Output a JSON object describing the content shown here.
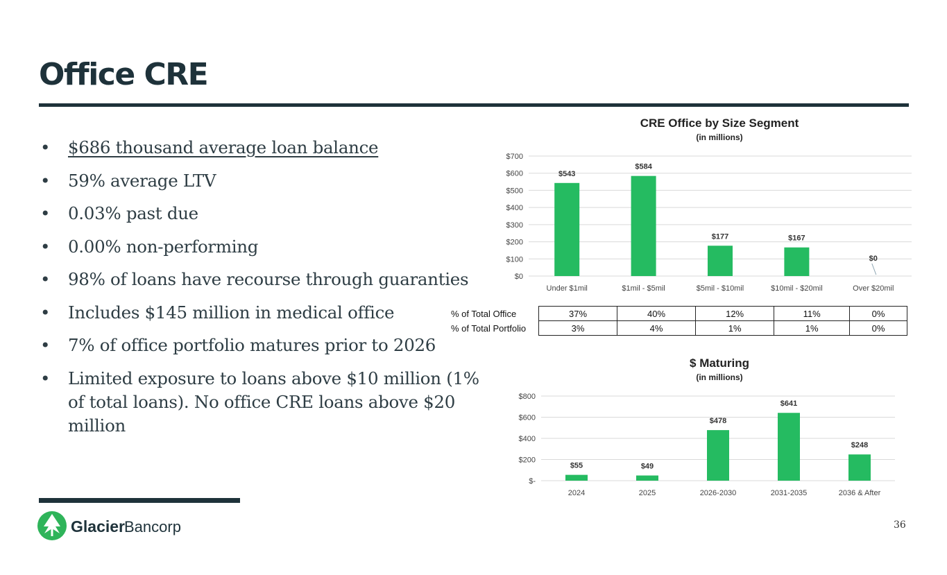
{
  "slide": {
    "title": "Office CRE",
    "page_number": "36",
    "bullets": [
      {
        "text": "$686 thousand average loan balance",
        "underline": true
      },
      {
        "text": "59% average LTV"
      },
      {
        "text": "0.03% past due"
      },
      {
        "text": "0.00% non-performing"
      },
      {
        "text": "98% of loans have recourse through guaranties"
      },
      {
        "text": "Includes $145 million in medical office"
      },
      {
        "text": "7% of office portfolio matures prior to 2026"
      },
      {
        "text": "Limited exposure to loans above $10 million (1% of total loans). No office CRE loans above $20 million"
      }
    ],
    "bullet_glyph": "•"
  },
  "logo": {
    "brand": "Glacier",
    "suffix": "Bancorp",
    "icon": "glacier-mountain-icon",
    "color": "#2fb45a"
  },
  "colors": {
    "bar": "#25bb61",
    "grid": "#d9d9d9",
    "dark": "#1e323a"
  },
  "pct_table": {
    "rows": [
      {
        "label": "% of Total Office",
        "values": [
          "37%",
          "40%",
          "12%",
          "11%",
          "0%"
        ]
      },
      {
        "label": "% of Total Portfolio",
        "values": [
          "3%",
          "4%",
          "1%",
          "1%",
          "0%"
        ]
      }
    ]
  },
  "chart_data": [
    {
      "type": "bar",
      "title": "CRE Office by Size Segment",
      "subtitle": "(in millions)",
      "categories": [
        "Under $1mil",
        "$1mil - $5mil",
        "$5mil - $10mil",
        "$10mil - $20mil",
        "Over $20mil"
      ],
      "values": [
        543,
        584,
        177,
        167,
        0
      ],
      "data_labels": [
        "$543",
        "$584",
        "$177",
        "$167",
        "$0"
      ],
      "ylim": [
        0,
        700
      ],
      "yticks": [
        0,
        100,
        200,
        300,
        400,
        500,
        600,
        700
      ],
      "ytick_labels": [
        "$0",
        "$100",
        "$200",
        "$300",
        "$400",
        "$500",
        "$600",
        "$700"
      ],
      "grid": true
    },
    {
      "type": "bar",
      "title": "$ Maturing",
      "subtitle": "(in millions)",
      "categories": [
        "2024",
        "2025",
        "2026-2030",
        "2031-2035",
        "2036 & After"
      ],
      "values": [
        55,
        49,
        478,
        641,
        248
      ],
      "data_labels": [
        "$55",
        "$49",
        "$478",
        "$641",
        "$248"
      ],
      "ylim": [
        0,
        800
      ],
      "yticks": [
        0,
        200,
        400,
        600,
        800
      ],
      "ytick_labels": [
        "$-",
        "$200",
        "$400",
        "$600",
        "$800"
      ],
      "grid": true
    }
  ]
}
